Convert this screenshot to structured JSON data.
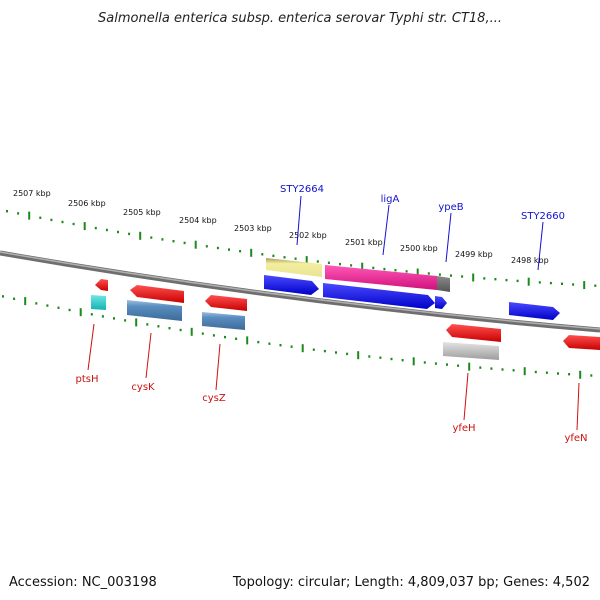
{
  "title": "Salmonella enterica subsp. enterica serovar Typhi str. CT18,...",
  "footer": {
    "accession": "Accession: NC_003198",
    "summary": "Topology: circular; Length: 4,809,037 bp; Genes: 4,502"
  },
  "scale_labels": [
    "2507 kbp",
    "2506 kbp",
    "2505 kbp",
    "2504 kbp",
    "2503 kbp",
    "2502 kbp",
    "2501 kbp",
    "2500 kbp",
    "2499 kbp",
    "2498 kbp"
  ],
  "genes_top": [
    "STY2664",
    "ligA",
    "ypeB",
    "STY2660"
  ],
  "genes_bottom": [
    "ptsH",
    "cysK",
    "cysZ",
    "yfeH",
    "yfeN"
  ],
  "colors": {
    "backbone": "#8a8a8a",
    "ticks": "#1a8a1a",
    "blue": "#1a1aee",
    "magenta": "#ee2299",
    "khaki": "#ece79a",
    "red": "#ee1111",
    "steel": "#4a7fb0",
    "cyan": "#22cccc",
    "gray": "#b8b8b8",
    "top_label": "#1111cc",
    "bottom_label": "#cc1111"
  }
}
